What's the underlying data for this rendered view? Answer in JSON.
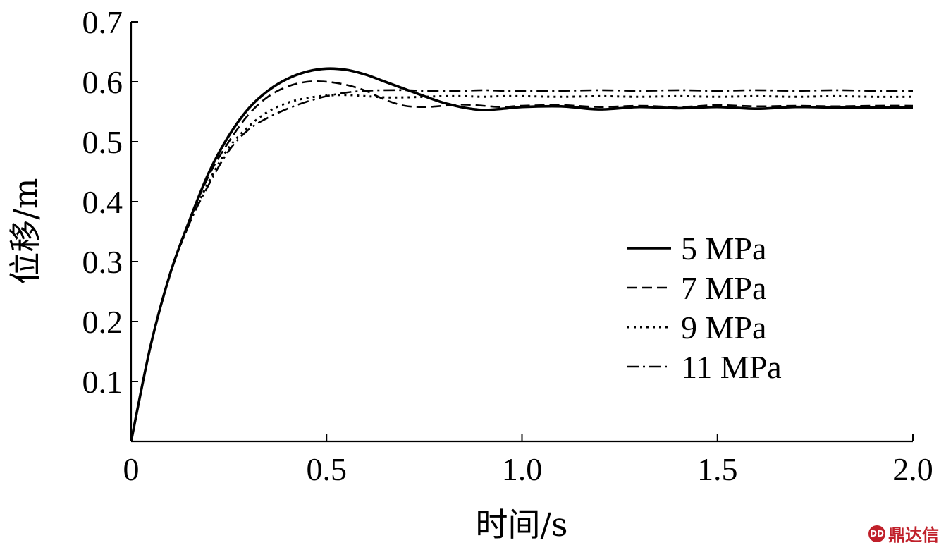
{
  "chart_data": {
    "type": "line",
    "xlabel": "时间/s",
    "ylabel": "位移/m",
    "xlim": [
      0,
      2.0
    ],
    "ylim": [
      0,
      0.7
    ],
    "x_ticks": [
      0,
      0.5,
      1.0,
      1.5,
      2.0
    ],
    "x_tick_labels": [
      "0",
      "0.5",
      "1.0",
      "1.5",
      "2.0"
    ],
    "y_ticks": [
      0.1,
      0.2,
      0.3,
      0.4,
      0.5,
      0.6,
      0.7
    ],
    "y_tick_labels": [
      "0.1",
      "0.2",
      "0.3",
      "0.4",
      "0.5",
      "0.6",
      "0.7"
    ],
    "grid": false,
    "legend_position": "center-right",
    "series": [
      {
        "name": "5 MPa",
        "style": "solid",
        "x": [
          0,
          0.05,
          0.1,
          0.15,
          0.2,
          0.25,
          0.3,
          0.35,
          0.4,
          0.45,
          0.5,
          0.55,
          0.6,
          0.65,
          0.7,
          0.75,
          0.8,
          0.85,
          0.9,
          0.95,
          1.0,
          1.1,
          1.2,
          1.3,
          1.4,
          1.5,
          1.6,
          1.7,
          1.8,
          1.9,
          2.0
        ],
        "y": [
          0,
          0.16,
          0.28,
          0.37,
          0.45,
          0.51,
          0.555,
          0.585,
          0.605,
          0.617,
          0.622,
          0.62,
          0.612,
          0.6,
          0.588,
          0.576,
          0.565,
          0.557,
          0.553,
          0.555,
          0.558,
          0.559,
          0.554,
          0.558,
          0.556,
          0.558,
          0.555,
          0.558,
          0.557,
          0.557,
          0.557
        ]
      },
      {
        "name": "7 MPa",
        "style": "dashed",
        "x": [
          0,
          0.05,
          0.1,
          0.15,
          0.2,
          0.25,
          0.3,
          0.35,
          0.4,
          0.45,
          0.5,
          0.55,
          0.6,
          0.65,
          0.7,
          0.75,
          0.8,
          0.85,
          0.9,
          0.95,
          1.0,
          1.1,
          1.2,
          1.3,
          1.4,
          1.5,
          1.6,
          1.7,
          1.8,
          1.9,
          2.0
        ],
        "y": [
          0,
          0.16,
          0.28,
          0.37,
          0.445,
          0.5,
          0.545,
          0.575,
          0.592,
          0.6,
          0.6,
          0.595,
          0.585,
          0.57,
          0.56,
          0.558,
          0.56,
          0.562,
          0.56,
          0.558,
          0.56,
          0.561,
          0.558,
          0.56,
          0.558,
          0.561,
          0.559,
          0.56,
          0.559,
          0.56,
          0.56
        ]
      },
      {
        "name": "9 MPa",
        "style": "dotted",
        "x": [
          0,
          0.05,
          0.1,
          0.15,
          0.2,
          0.25,
          0.3,
          0.35,
          0.4,
          0.45,
          0.5,
          0.55,
          0.6,
          0.65,
          0.7,
          0.75,
          0.8,
          0.85,
          0.9,
          0.95,
          1.0,
          1.1,
          1.2,
          1.3,
          1.4,
          1.5,
          1.6,
          1.7,
          1.8,
          1.9,
          2.0
        ],
        "y": [
          0,
          0.16,
          0.28,
          0.365,
          0.435,
          0.49,
          0.525,
          0.55,
          0.565,
          0.573,
          0.577,
          0.578,
          0.576,
          0.574,
          0.574,
          0.575,
          0.576,
          0.576,
          0.575,
          0.576,
          0.576,
          0.575,
          0.576,
          0.575,
          0.576,
          0.575,
          0.576,
          0.575,
          0.576,
          0.575,
          0.575
        ]
      },
      {
        "name": "11 MPa",
        "style": "dash-dot",
        "x": [
          0,
          0.05,
          0.1,
          0.15,
          0.2,
          0.25,
          0.3,
          0.35,
          0.4,
          0.45,
          0.5,
          0.55,
          0.6,
          0.65,
          0.7,
          0.75,
          0.8,
          0.85,
          0.9,
          0.95,
          1.0,
          1.1,
          1.2,
          1.3,
          1.4,
          1.5,
          1.6,
          1.7,
          1.8,
          1.9,
          2.0
        ],
        "y": [
          0,
          0.16,
          0.28,
          0.365,
          0.43,
          0.485,
          0.52,
          0.54,
          0.555,
          0.567,
          0.576,
          0.582,
          0.585,
          0.586,
          0.586,
          0.585,
          0.585,
          0.585,
          0.586,
          0.585,
          0.585,
          0.585,
          0.586,
          0.585,
          0.586,
          0.585,
          0.586,
          0.585,
          0.586,
          0.585,
          0.585
        ]
      }
    ]
  },
  "watermark": {
    "icon_text": "DD",
    "text": "鼎达信"
  }
}
